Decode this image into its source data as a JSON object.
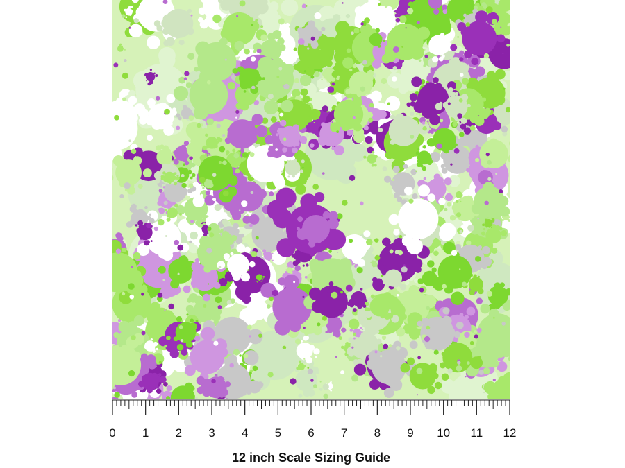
{
  "caption": "12 inch Scale Sizing Guide",
  "ruler": {
    "labels": [
      0,
      1,
      2,
      3,
      4,
      5,
      6,
      7,
      8,
      9,
      10,
      11,
      12
    ]
  }
}
